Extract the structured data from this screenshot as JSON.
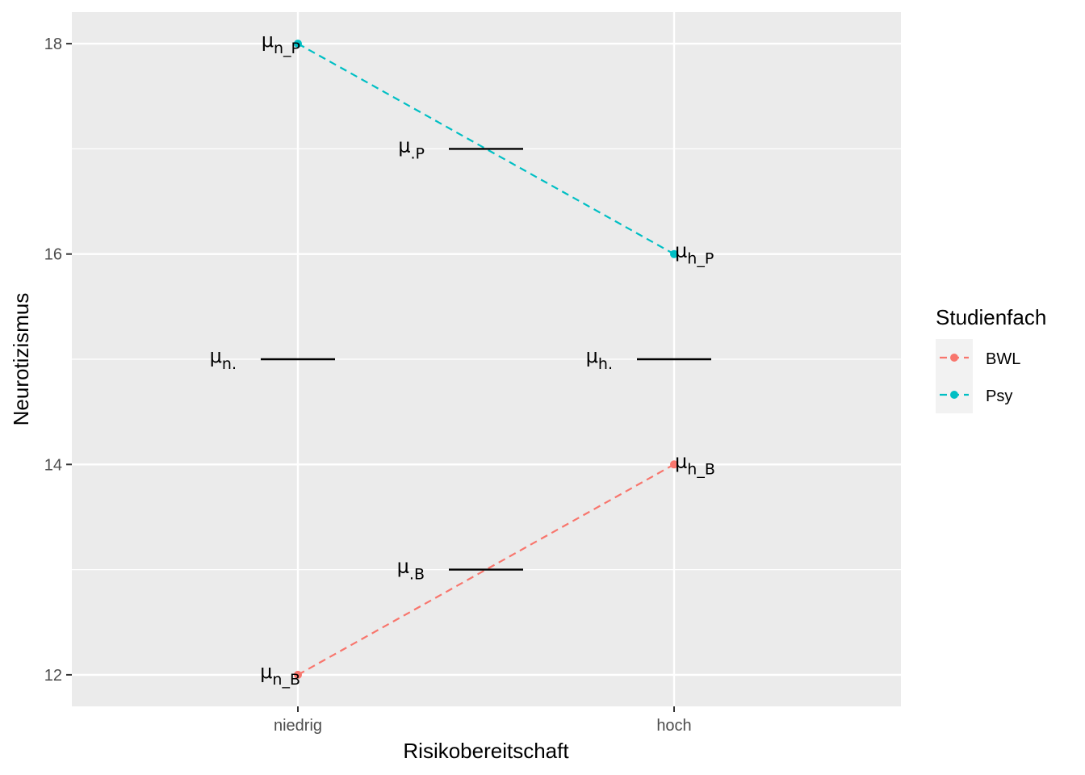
{
  "chart_data": {
    "type": "line",
    "xlabel": "Risikobereitschaft",
    "ylabel": "Neurotizismus",
    "categories": [
      "niedrig",
      "hoch"
    ],
    "ylim": [
      11.7,
      18.3
    ],
    "yticks": [
      12,
      14,
      16,
      18
    ],
    "grid": true,
    "legend": {
      "title": "Studienfach",
      "position": "right"
    },
    "series": [
      {
        "name": "BWL",
        "color": "#F8766D",
        "linestyle": "dashed",
        "values": [
          12,
          14
        ],
        "point_labels": [
          {
            "symbol": "μ",
            "sub": "n_B"
          },
          {
            "symbol": "μ",
            "sub": "h_B"
          }
        ]
      },
      {
        "name": "Psy",
        "color": "#00BFC4",
        "linestyle": "dashed",
        "values": [
          18,
          16
        ],
        "point_labels": [
          {
            "symbol": "μ",
            "sub": "n_P"
          },
          {
            "symbol": "μ",
            "sub": "h_P"
          }
        ]
      }
    ],
    "marginal_means": [
      {
        "x": 1,
        "y": 15,
        "symbol": "μ",
        "sub": "n."
      },
      {
        "x": 2,
        "y": 15,
        "symbol": "μ",
        "sub": "h."
      },
      {
        "x": 1.5,
        "y": 17,
        "symbol": "μ",
        "sub": ".P"
      },
      {
        "x": 1.5,
        "y": 13,
        "symbol": "μ",
        "sub": ".B"
      }
    ]
  }
}
